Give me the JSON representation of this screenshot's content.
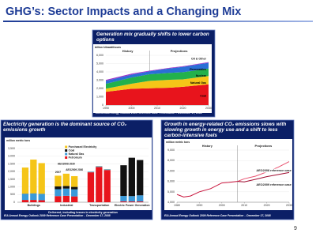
{
  "slide": {
    "title": "GHG’s: Sector Impacts and a Changing Mix",
    "page_number": "9"
  },
  "chart_data": [
    {
      "type": "area",
      "title": "Generation mix gradually shifts to lower carbon options",
      "y_label": "billion kilowatthours",
      "x": [
        1990,
        2000,
        2007,
        2015,
        2020,
        2030
      ],
      "series": [
        {
          "name": "Coal",
          "color": "#e8141c",
          "values": [
            1600,
            1970,
            2020,
            2100,
            2200,
            2500
          ]
        },
        {
          "name": "Natural Gas",
          "color": "#f5c518",
          "values": [
            380,
            600,
            900,
            950,
            900,
            1000
          ]
        },
        {
          "name": "Nuclear",
          "color": "#22b14c",
          "values": [
            580,
            750,
            800,
            830,
            860,
            900
          ]
        },
        {
          "name": "Renewables",
          "color": "#2a6fd6",
          "values": [
            360,
            350,
            350,
            550,
            650,
            700
          ]
        },
        {
          "name": "Oil & Other",
          "color": "#9b30c8",
          "values": [
            120,
            110,
            70,
            70,
            70,
            80
          ]
        }
      ],
      "xlim": [
        1990,
        2030
      ],
      "xticks": [
        1990,
        2000,
        2010,
        2020,
        2030
      ],
      "ylim": [
        0,
        6000
      ],
      "yticks": [
        0,
        {
          "value": 1000,
          "label": "1,000"
        },
        {
          "value": 2000,
          "label": "2,000"
        },
        {
          "value": 3000,
          "label": "3,000"
        },
        {
          "value": 4000,
          "label": "4,000"
        },
        {
          "value": 5000,
          "label": "5,000"
        },
        {
          "value": 6000,
          "label": "6,000"
        }
      ],
      "divider_x": 2007,
      "annotations": [
        "History",
        "Projections"
      ],
      "grid": true,
      "source": "EIA Annual Energy Outlook 2009 Reference Case Presentation – December 17, 2008"
    },
    {
      "type": "bar",
      "title": "Electricity generation is the dominant source of CO₂ emissions growth",
      "y_label": "million metric tons",
      "categories": [
        "Buildings",
        "Industrial",
        "Transportation",
        "Electric Power Generation"
      ],
      "bar_labels": [
        "2007",
        "AEO2008 2030",
        "AEO2009 2030"
      ],
      "series": [
        {
          "name": "Petroleum",
          "color": "#e8141c",
          "values": [
            [
              150,
              150,
              130
            ],
            [
              400,
              420,
              380
            ],
            [
              1950,
              2300,
              2100
            ],
            [
              60,
              50,
              50
            ]
          ]
        },
        {
          "name": "Natural Gas",
          "color": "#3a9ad9",
          "values": [
            [
              400,
              420,
              410
            ],
            [
              450,
              470,
              460
            ],
            [
              40,
              45,
              45
            ],
            [
              350,
              350,
              400
            ]
          ]
        },
        {
          "name": "Coal",
          "color": "#111111",
          "values": [
            [
              10,
              10,
              10
            ],
            [
              180,
              170,
              160
            ],
            [
              0,
              0,
              0
            ],
            [
              2000,
              2500,
              2300
            ]
          ]
        },
        {
          "name": "Purchased Electricity",
          "color": "#f5c518",
          "values": [
            [
              1700,
              2200,
              2000
            ],
            [
              700,
              800,
              700
            ],
            [
              5,
              10,
              10
            ],
            [
              0,
              0,
              0
            ]
          ]
        }
      ],
      "ylim": [
        0,
        3500
      ],
      "yticks": [
        0,
        500,
        {
          "value": 1000,
          "label": "1,000"
        },
        {
          "value": 1500,
          "label": "1,500"
        },
        {
          "value": 2000,
          "label": "2,000"
        },
        {
          "value": 2500,
          "label": "2,500"
        },
        {
          "value": 3000,
          "label": "3,000"
        },
        {
          "value": 3500,
          "label": "3,500"
        }
      ],
      "grid": true,
      "legend": "top",
      "note": "Delivered, including losses in electricity generation",
      "source": "EIA Annual Energy Outlook 2009 Reference Case Presentation – December 17, 2008"
    },
    {
      "type": "line",
      "title": "Growth in energy-related CO₂ emissions slows with slowing growth in energy use and a shift to less carbon-intensive fuels",
      "y_label": "million metric tons",
      "series": [
        {
          "name": "History",
          "color": "#c8143c",
          "x": [
            1980,
            1983,
            1986,
            1990,
            1995,
            2000,
            2003,
            2007
          ],
          "values": [
            4750,
            4500,
            4600,
            5000,
            5300,
            5850,
            5900,
            6000
          ]
        },
        {
          "name": "AEO2008 reference case",
          "color": "#e8506e",
          "x": [
            2007,
            2010,
            2015,
            2020,
            2025,
            2030
          ],
          "values": [
            6000,
            6250,
            6500,
            6900,
            7350,
            7900
          ]
        },
        {
          "name": "AEO2009 reference case",
          "color": "#a00c30",
          "x": [
            2007,
            2010,
            2015,
            2020,
            2025,
            2030
          ],
          "values": [
            6000,
            5950,
            6200,
            6450,
            6650,
            6850
          ]
        }
      ],
      "xlim": [
        1980,
        2030
      ],
      "xticks": [
        1980,
        1990,
        2000,
        2010,
        2020,
        2030
      ],
      "ylim": [
        4000,
        9000
      ],
      "yticks": [
        {
          "value": 4000,
          "label": "4,000"
        },
        {
          "value": 5000,
          "label": "5,000"
        },
        {
          "value": 6000,
          "label": "6,000"
        },
        {
          "value": 7000,
          "label": "7,000"
        },
        {
          "value": 8000,
          "label": "8,000"
        },
        {
          "value": 9000,
          "label": "9,000"
        }
      ],
      "divider_x": 2007,
      "annotations": [
        "Projections"
      ],
      "grid": true,
      "source": "EIA Annual Energy Outlook 2009 Reference Case Presentation – December 17, 2008"
    }
  ]
}
